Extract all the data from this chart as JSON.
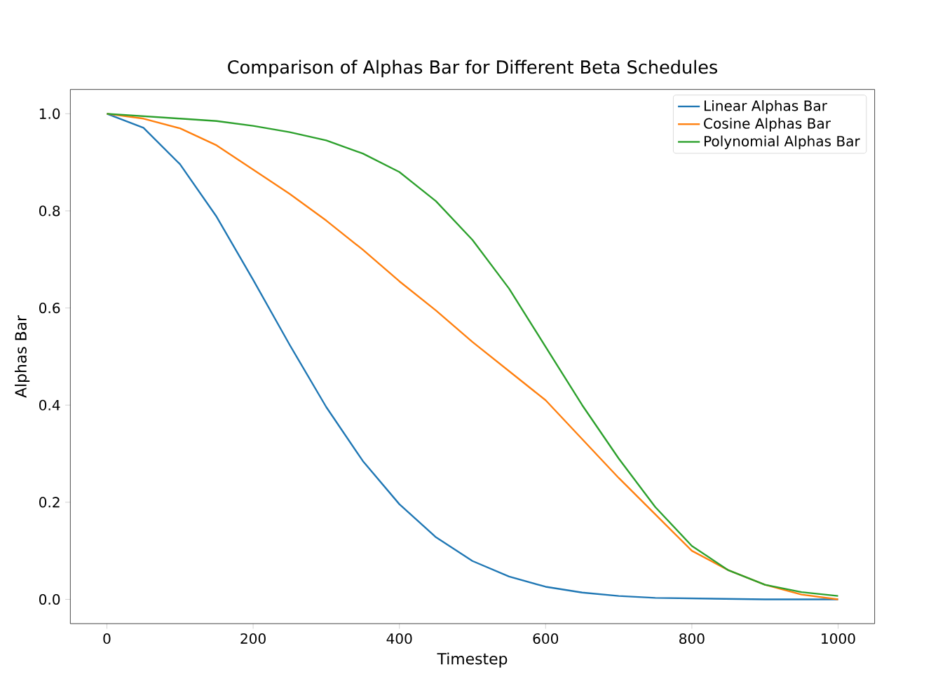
{
  "chart_data": {
    "type": "line",
    "title": "Comparison of Alphas Bar for Different Beta Schedules",
    "xlabel": "Timestep",
    "ylabel": "Alphas Bar",
    "x": [
      0,
      50,
      100,
      150,
      200,
      250,
      300,
      350,
      400,
      450,
      500,
      550,
      600,
      650,
      700,
      750,
      800,
      850,
      900,
      950,
      1000
    ],
    "series": [
      {
        "name": "Linear Alphas Bar",
        "color": "#1f77b4",
        "values": [
          1.0,
          0.971,
          0.896,
          0.788,
          0.658,
          0.524,
          0.396,
          0.285,
          0.196,
          0.128,
          0.079,
          0.047,
          0.026,
          0.014,
          0.007,
          0.003,
          0.002,
          0.001,
          0.0,
          0.0,
          0.0
        ]
      },
      {
        "name": "Cosine Alphas Bar",
        "color": "#ff7f0e",
        "values": [
          1.0,
          0.99,
          0.97,
          0.935,
          0.885,
          0.835,
          0.78,
          0.72,
          0.655,
          0.595,
          0.53,
          0.47,
          0.41,
          0.33,
          0.25,
          0.175,
          0.1,
          0.06,
          0.03,
          0.01,
          0.0
        ]
      },
      {
        "name": "Polynomial Alphas Bar",
        "color": "#2ca02c",
        "values": [
          1.0,
          0.995,
          0.99,
          0.985,
          0.975,
          0.962,
          0.945,
          0.918,
          0.88,
          0.82,
          0.74,
          0.64,
          0.52,
          0.4,
          0.29,
          0.19,
          0.11,
          0.06,
          0.03,
          0.015,
          0.007
        ]
      }
    ],
    "xlim": [
      -50,
      1050
    ],
    "ylim": [
      -0.05,
      1.05
    ],
    "xticks": [
      0,
      200,
      400,
      600,
      800,
      1000
    ],
    "yticks": [
      {
        "value": 0,
        "label": "0.0"
      },
      0.2,
      0.4,
      0.6,
      0.8,
      {
        "value": 1,
        "label": "1.0"
      }
    ],
    "legend": "top right",
    "grid": false,
    "marker": "none",
    "line_style": "solid"
  }
}
